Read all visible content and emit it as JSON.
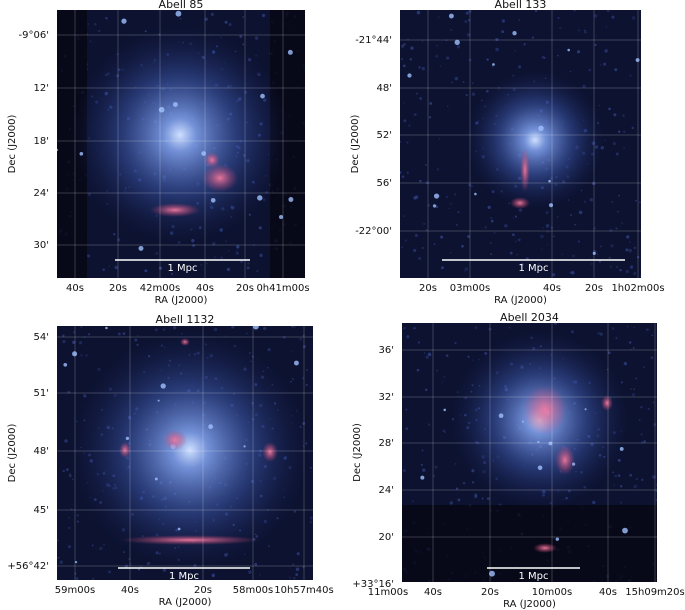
{
  "panels": [
    {
      "title": "Abell 85",
      "x_label": "RA (J2000)",
      "y_label": "Dec (J2000)",
      "x_ticks": [
        "40s",
        "20s",
        "42m00s",
        "40s",
        "20s",
        "0h41m00s"
      ],
      "y_ticks": [
        "-9°06'",
        "12'",
        "18'",
        "24'",
        "30'"
      ],
      "scale_bar": "1 Mpc"
    },
    {
      "title": "Abell 133",
      "x_label": "RA (J2000)",
      "y_label": "Dec (J2000)",
      "x_ticks": [
        "20s",
        "03m00s",
        "40s",
        "20s",
        "1h02m00s"
      ],
      "y_ticks": [
        "-21°44'",
        "48'",
        "52'",
        "56'",
        "-22°00'"
      ],
      "scale_bar": "1 Mpc"
    },
    {
      "title": "Abell 1132",
      "x_label": "RA (J2000)",
      "y_label": "Dec (J2000)",
      "x_ticks": [
        "59m00s",
        "40s",
        "20s",
        "58m00s",
        "10h57m40s"
      ],
      "y_ticks": [
        "54'",
        "51'",
        "48'",
        "45'",
        "+56°42'"
      ],
      "scale_bar": "1 Mpc"
    },
    {
      "title": "Abell 2034",
      "x_label": "RA (J2000)",
      "y_label": "Dec (J2000)",
      "x_ticks": [
        "11m00s",
        "40s",
        "20s",
        "10m00s",
        "40s",
        "15h09m20s"
      ],
      "y_ticks": [
        "36'",
        "32'",
        "28'",
        "24'",
        "20'",
        "+33°16'"
      ],
      "scale_bar": "1 Mpc"
    }
  ]
}
